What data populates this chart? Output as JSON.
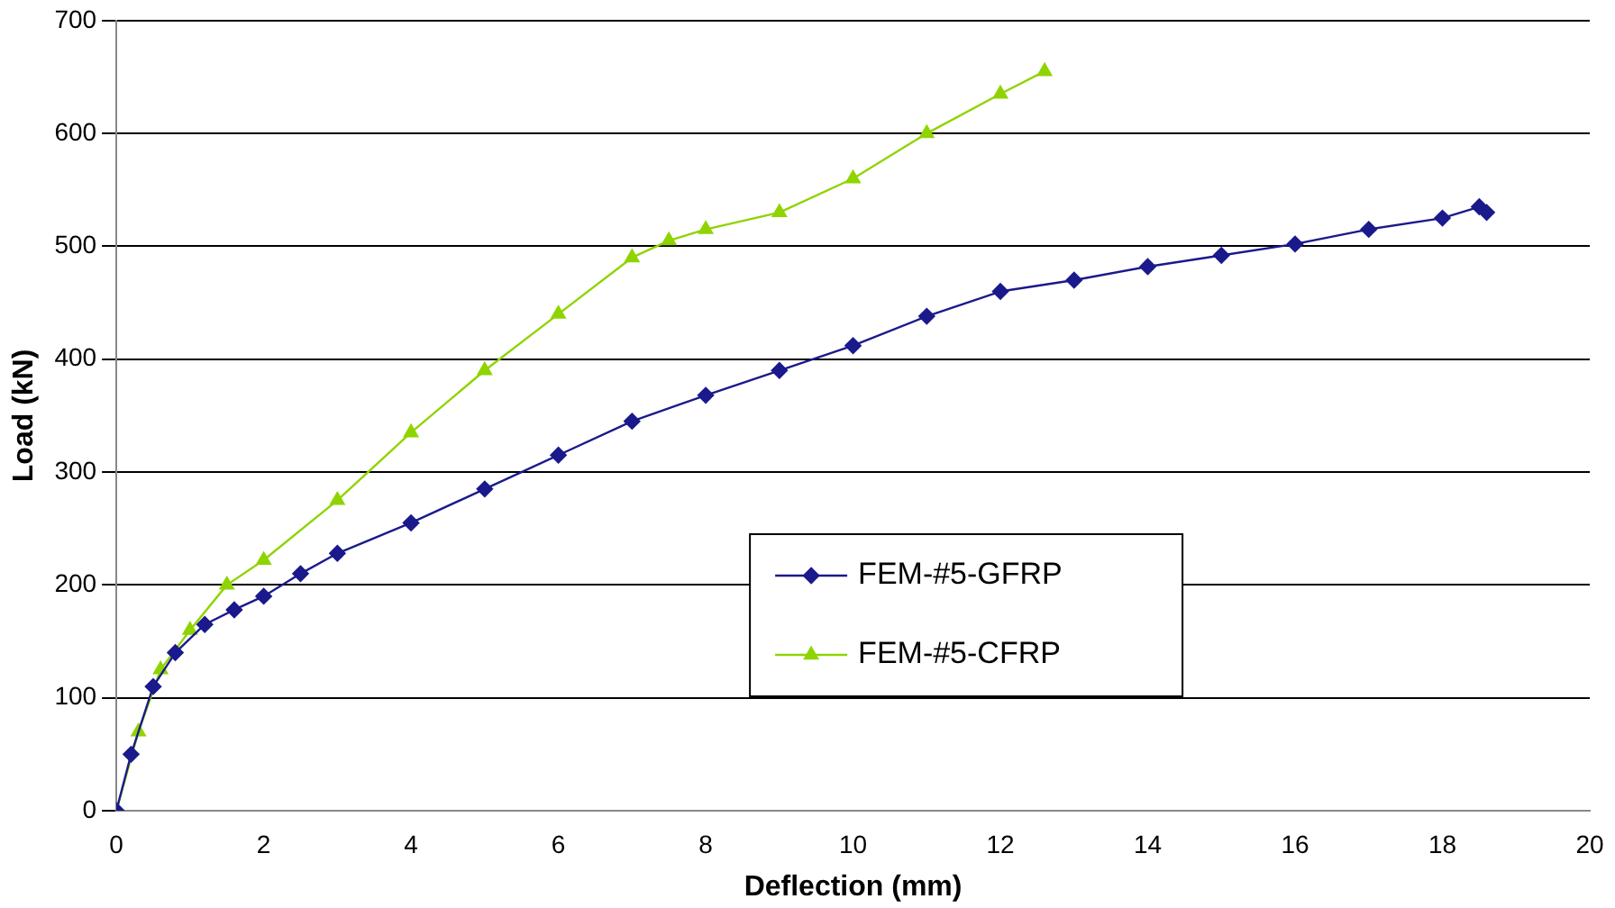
{
  "chart_data": {
    "type": "line",
    "xlabel": "Deflection (mm)",
    "ylabel": "Load (kN)",
    "xlim": [
      0,
      20
    ],
    "xticks": [
      0,
      2,
      4,
      6,
      8,
      10,
      12,
      14,
      16,
      18,
      20
    ],
    "ylim": [
      0,
      700
    ],
    "yticks": [
      0,
      100,
      200,
      300,
      400,
      500,
      600,
      700
    ],
    "grid": "y",
    "legend": "right",
    "series": [
      {
        "name": "FEM-#5-GFRP",
        "color": "#1a1a8c",
        "marker": "diamond",
        "x": [
          0,
          0.2,
          0.5,
          0.8,
          1.2,
          1.6,
          2,
          2.5,
          3,
          4,
          5,
          6,
          7,
          8,
          9,
          10,
          11,
          12,
          13,
          14,
          15,
          16,
          17,
          18,
          18.5,
          18.6
        ],
        "values": [
          0,
          50,
          110,
          140,
          165,
          178,
          190,
          210,
          228,
          255,
          285,
          315,
          345,
          368,
          390,
          412,
          438,
          460,
          470,
          482,
          492,
          502,
          515,
          525,
          535,
          530
        ]
      },
      {
        "name": "FEM-#5-CFRP",
        "color": "#8fd400",
        "marker": "triangle",
        "x": [
          0,
          0.3,
          0.6,
          1,
          1.5,
          2,
          3,
          4,
          5,
          6,
          7,
          7.5,
          8,
          9,
          10,
          11,
          12,
          12.6
        ],
        "values": [
          0,
          70,
          125,
          160,
          200,
          222,
          275,
          335,
          390,
          440,
          490,
          505,
          515,
          530,
          560,
          600,
          635,
          655
        ]
      }
    ]
  }
}
